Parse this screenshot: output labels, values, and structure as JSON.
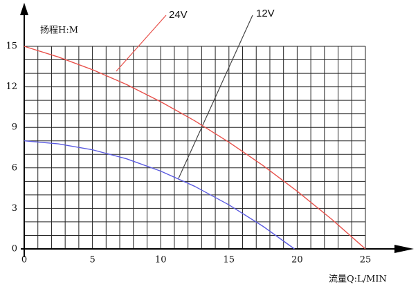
{
  "chart_data": {
    "type": "line",
    "y_label": "扬程H:M",
    "x_label": "流量Q:L/MIN",
    "xlim": [
      0,
      25
    ],
    "ylim": [
      0,
      15
    ],
    "xticks": [
      0,
      5,
      10,
      15,
      20,
      25
    ],
    "yticks": [
      0,
      3,
      6,
      9,
      12,
      15
    ],
    "xgrid": [
      0,
      1,
      2,
      3,
      4,
      5,
      6,
      7,
      8,
      9,
      10,
      11,
      12,
      13,
      14,
      15,
      16,
      17,
      18,
      19,
      20,
      21,
      22,
      23,
      24,
      25
    ],
    "ygrid": [
      0,
      1,
      2,
      3,
      4,
      5,
      6,
      7,
      8,
      9,
      10,
      11,
      12,
      13,
      14,
      15
    ],
    "grid": true,
    "series": [
      {
        "name": "24V",
        "color": "#e8504a",
        "x": [
          0,
          2.5,
          5,
          7.5,
          10,
          12.5,
          15,
          17.5,
          20,
          22.5,
          25
        ],
        "values": [
          15,
          14.21,
          13.27,
          12.17,
          10.9,
          9.48,
          7.9,
          6.17,
          4.27,
          2.22,
          0
        ]
      },
      {
        "name": "12V",
        "color": "#5a5ae0",
        "x": [
          0,
          2.5,
          5,
          7.5,
          10,
          12.5,
          15,
          17.5,
          19.8
        ],
        "values": [
          8,
          7.78,
          7.34,
          6.67,
          5.76,
          4.63,
          3.26,
          1.67,
          0
        ]
      }
    ]
  }
}
